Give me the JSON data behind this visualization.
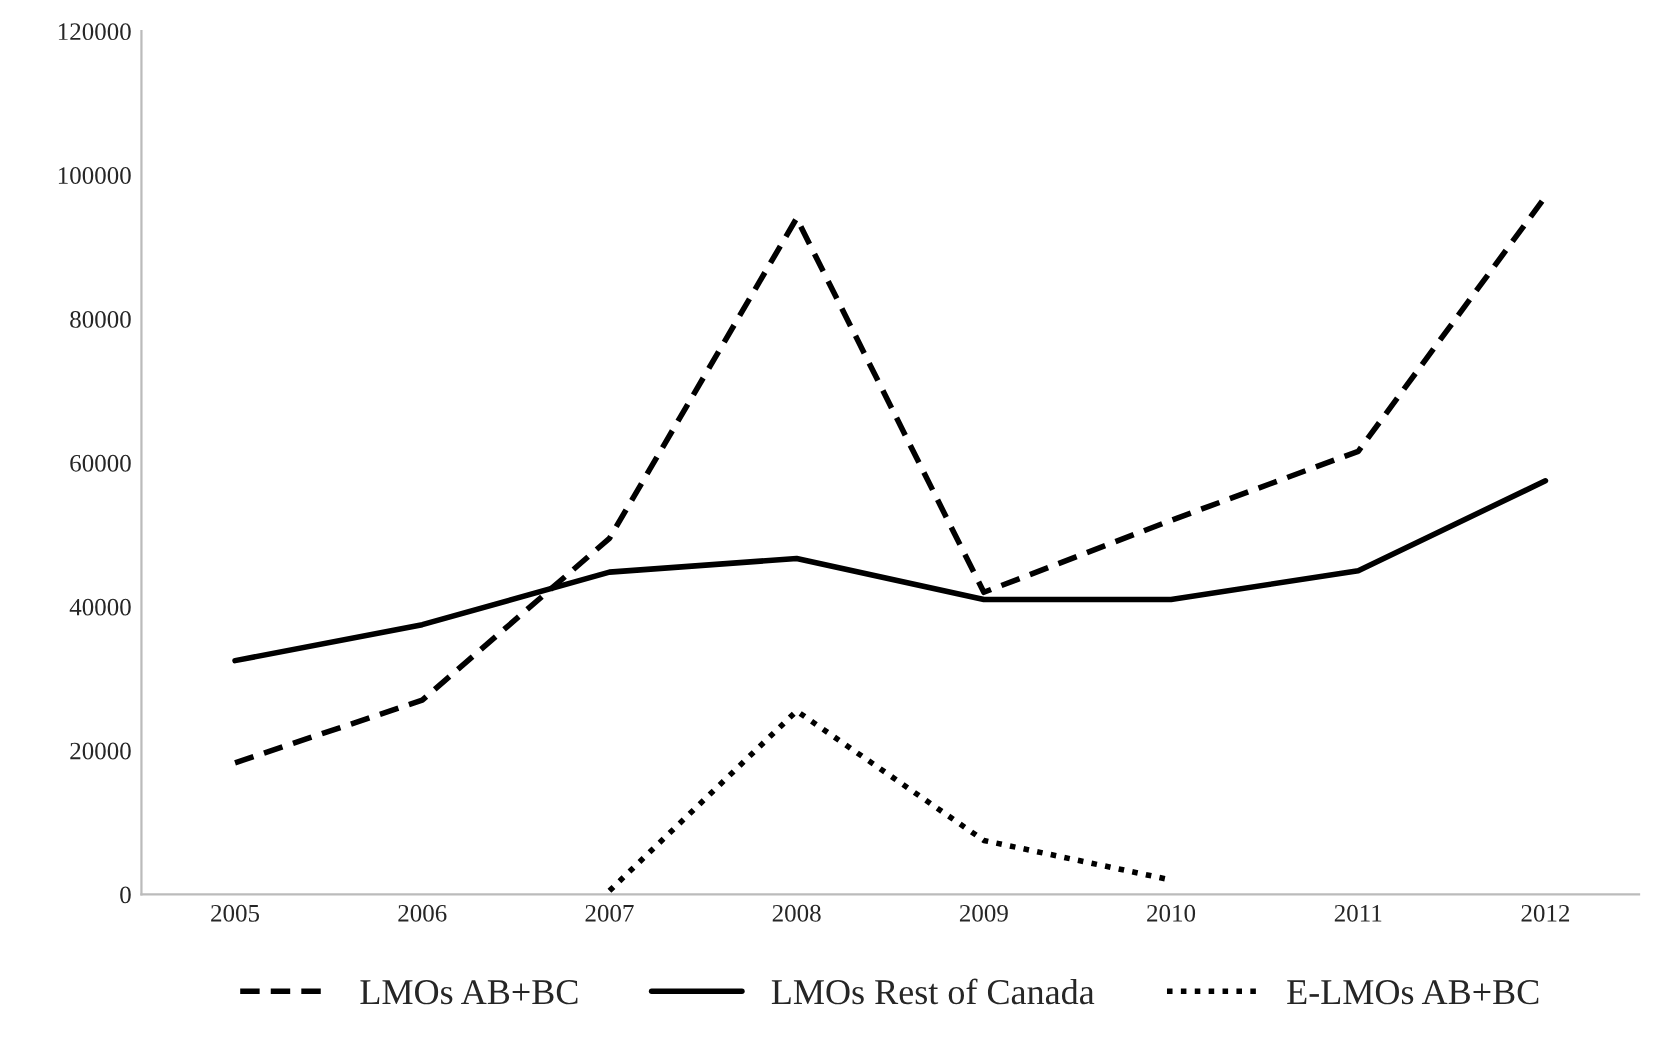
{
  "chart_data": {
    "type": "line",
    "categories": [
      "2005",
      "2006",
      "2007",
      "2008",
      "2009",
      "2010",
      "2011",
      "2012"
    ],
    "series": [
      {
        "name": "LMOs AB+BC",
        "color": "#000000",
        "line_style": "dashed",
        "values": [
          18300,
          27000,
          49500,
          94000,
          42000,
          52000,
          61600,
          97000
        ]
      },
      {
        "name": "LMOs Rest of Canada",
        "color": "#000000",
        "line_style": "solid",
        "values": [
          32500,
          37500,
          44800,
          46700,
          41000,
          41000,
          45000,
          57500
        ]
      },
      {
        "name": "E-LMOs AB+BC",
        "color": "#000000",
        "line_style": "dotted",
        "values": [
          null,
          null,
          500,
          25500,
          7500,
          2000,
          null,
          null
        ]
      }
    ],
    "ylim": [
      0,
      120000
    ],
    "yticks": [
      0,
      20000,
      40000,
      60000,
      80000,
      100000,
      120000
    ],
    "grid": false,
    "legend": "bottom",
    "marker": "none"
  }
}
